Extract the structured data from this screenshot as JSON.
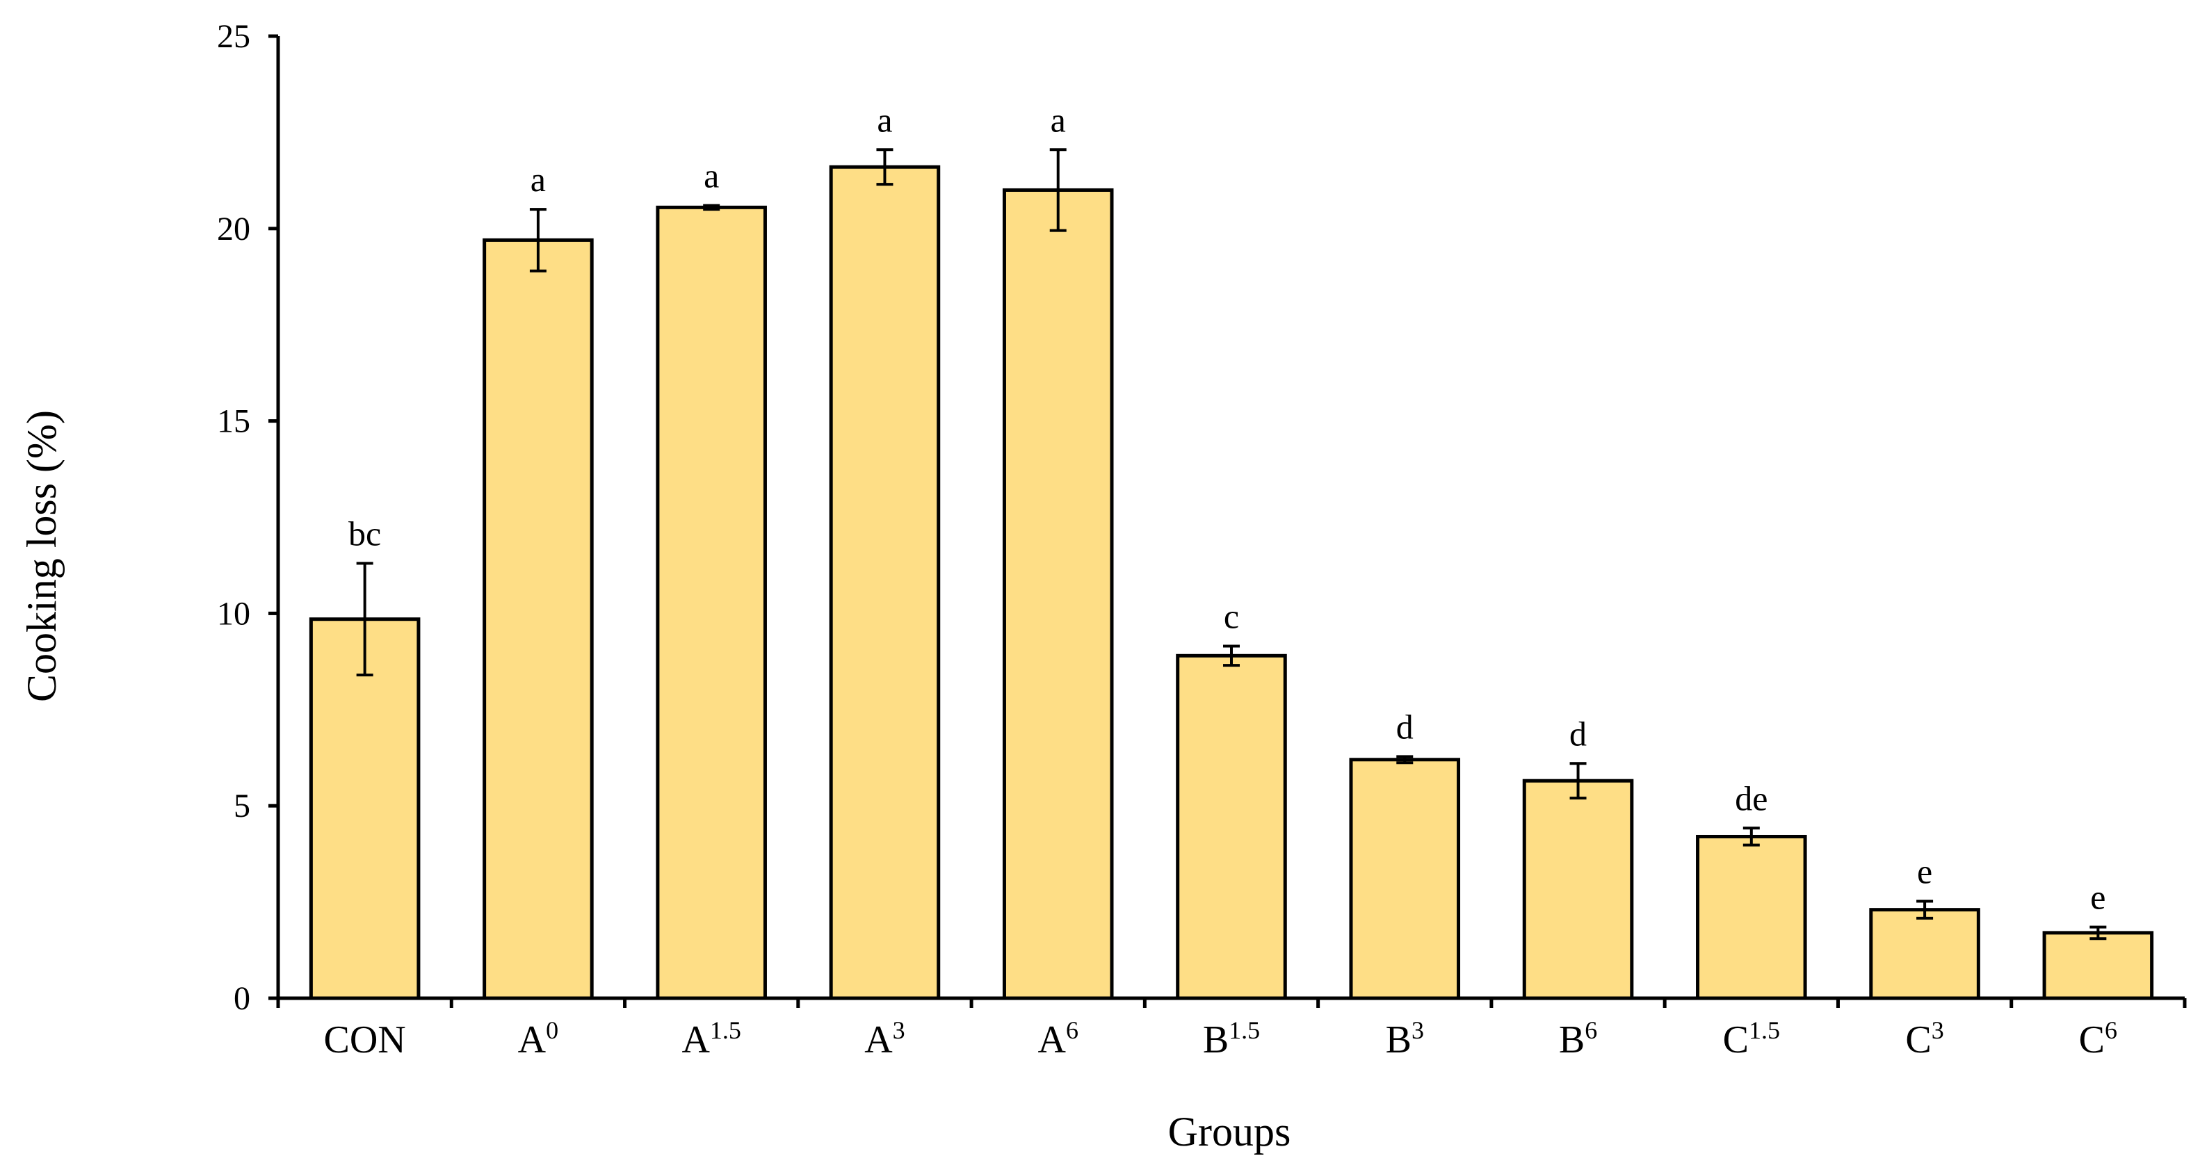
{
  "chart_data": {
    "type": "bar",
    "xlabel": "Groups",
    "ylabel": "Cooking loss (%)",
    "ylim": [
      0,
      25
    ],
    "yticks": [
      0,
      5,
      10,
      15,
      20,
      25
    ],
    "grid": false,
    "legend": "none",
    "colors": {
      "bar_fill": "#FEDE86",
      "bar_stroke": "#000000"
    },
    "categories": [
      {
        "base": "CON",
        "sup": ""
      },
      {
        "base": "A",
        "sup": "0"
      },
      {
        "base": "A",
        "sup": "1.5"
      },
      {
        "base": "A",
        "sup": "3"
      },
      {
        "base": "A",
        "sup": "6"
      },
      {
        "base": "B",
        "sup": "1.5"
      },
      {
        "base": "B",
        "sup": "3"
      },
      {
        "base": "B",
        "sup": "6"
      },
      {
        "base": "C",
        "sup": "1.5"
      },
      {
        "base": "C",
        "sup": "3"
      },
      {
        "base": "C",
        "sup": "6"
      }
    ],
    "values": [
      9.85,
      19.7,
      20.55,
      21.6,
      21.0,
      8.9,
      6.2,
      5.65,
      4.2,
      2.3,
      1.7
    ],
    "errors": [
      1.45,
      0.8,
      0.05,
      0.45,
      1.05,
      0.25,
      0.08,
      0.45,
      0.22,
      0.22,
      0.15
    ],
    "significance": [
      "bc",
      "a",
      "a",
      "a",
      "a",
      "c",
      "d",
      "d",
      "de",
      "e",
      "e"
    ]
  }
}
